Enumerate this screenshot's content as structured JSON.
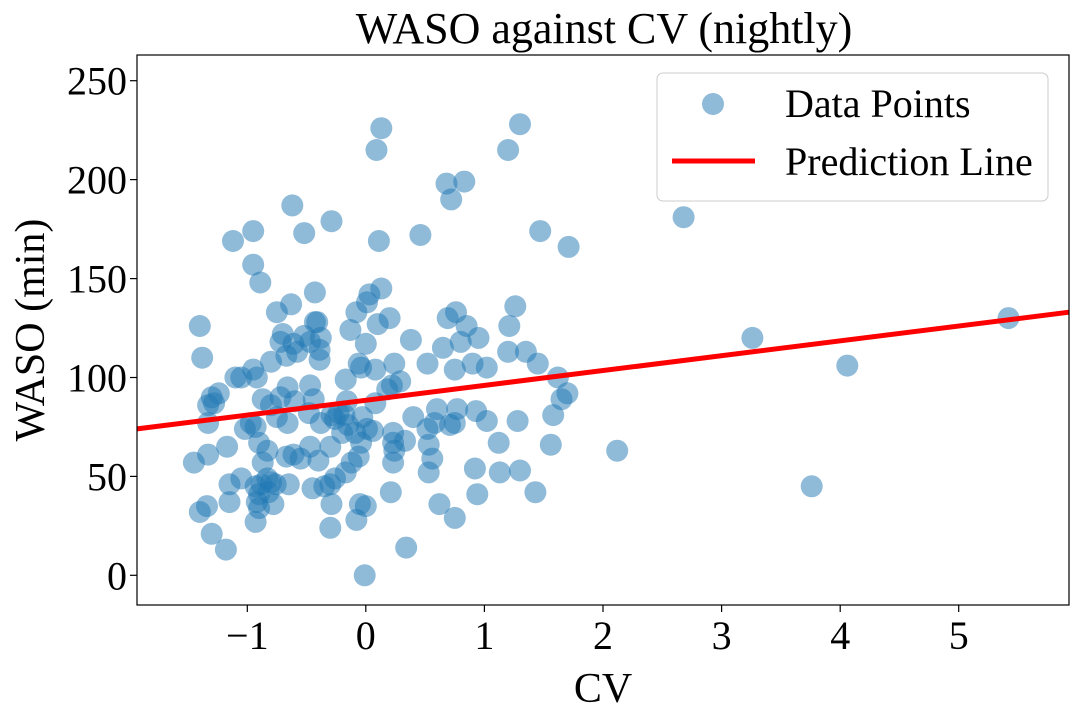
{
  "chart_data": {
    "type": "scatter",
    "title": "WASO against CV (nightly)",
    "xlabel": "CV",
    "ylabel": "WASO (min)",
    "xlim": [
      -1.93,
      5.93
    ],
    "ylim": [
      -15,
      263
    ],
    "xticks": [
      -1,
      0,
      1,
      2,
      3,
      4,
      5
    ],
    "yticks": [
      0,
      50,
      100,
      150,
      200,
      250
    ],
    "xtick_labels": [
      "−1",
      "0",
      "1",
      "2",
      "3",
      "4",
      "5"
    ],
    "ytick_labels": [
      "0",
      "50",
      "100",
      "150",
      "200",
      "250"
    ],
    "grid": false,
    "legend_position": "top-right",
    "series": [
      {
        "name": "Data Points",
        "kind": "scatter",
        "color": "#1f77b4",
        "alpha": 0.5,
        "points": [
          [
            0.13,
            226
          ],
          [
            0.09,
            215
          ],
          [
            1.3,
            228
          ],
          [
            1.2,
            215
          ],
          [
            0.68,
            198
          ],
          [
            0.83,
            199
          ],
          [
            0.72,
            190
          ],
          [
            -0.62,
            187
          ],
          [
            -0.29,
            179
          ],
          [
            -0.52,
            173
          ],
          [
            -0.95,
            174
          ],
          [
            -1.12,
            169
          ],
          [
            0.11,
            169
          ],
          [
            0.46,
            172
          ],
          [
            1.47,
            174
          ],
          [
            1.71,
            166
          ],
          [
            2.68,
            181
          ],
          [
            -0.95,
            157
          ],
          [
            -0.89,
            148
          ],
          [
            -0.43,
            143
          ],
          [
            0.03,
            142
          ],
          [
            0.13,
            145
          ],
          [
            0.01,
            138
          ],
          [
            -0.63,
            137
          ],
          [
            -0.75,
            133
          ],
          [
            -0.08,
            133
          ],
          [
            0.2,
            130
          ],
          [
            1.26,
            136
          ],
          [
            0.76,
            133
          ],
          [
            0.69,
            130
          ],
          [
            -0.43,
            128
          ],
          [
            -0.41,
            128
          ],
          [
            -1.4,
            126
          ],
          [
            -0.13,
            124
          ],
          [
            0.1,
            127
          ],
          [
            0.85,
            126
          ],
          [
            1.21,
            126
          ],
          [
            -0.7,
            122
          ],
          [
            -0.61,
            117
          ],
          [
            -0.58,
            113
          ],
          [
            -0.47,
            118
          ],
          [
            -0.39,
            114
          ],
          [
            -0.52,
            121
          ],
          [
            -0.38,
            120
          ],
          [
            0.0,
            117
          ],
          [
            -0.72,
            118
          ],
          [
            0.38,
            119
          ],
          [
            0.95,
            120
          ],
          [
            0.65,
            115
          ],
          [
            0.8,
            118
          ],
          [
            -1.38,
            110
          ],
          [
            -0.67,
            111
          ],
          [
            -0.39,
            109
          ],
          [
            -0.8,
            108
          ],
          [
            0.24,
            107
          ],
          [
            0.52,
            107
          ],
          [
            0.9,
            107
          ],
          [
            1.35,
            113
          ],
          [
            1.45,
            107
          ],
          [
            1.2,
            113
          ],
          [
            -0.06,
            107
          ],
          [
            0.08,
            104
          ],
          [
            -0.04,
            105
          ],
          [
            -0.95,
            104
          ],
          [
            -0.92,
            100
          ],
          [
            -1.1,
            100
          ],
          [
            -1.05,
            100
          ],
          [
            -0.17,
            99
          ],
          [
            0.29,
            98
          ],
          [
            0.22,
            96
          ],
          [
            0.75,
            104
          ],
          [
            1.02,
            105
          ],
          [
            0.18,
            94
          ],
          [
            -0.47,
            96
          ],
          [
            -0.66,
            95
          ],
          [
            1.62,
            100
          ],
          [
            1.7,
            92
          ],
          [
            3.26,
            120
          ],
          [
            4.06,
            106
          ],
          [
            5.42,
            130
          ],
          [
            -1.3,
            90
          ],
          [
            -1.28,
            87
          ],
          [
            -1.33,
            86
          ],
          [
            -1.24,
            92
          ],
          [
            -0.87,
            89
          ],
          [
            -0.72,
            90
          ],
          [
            -0.8,
            86
          ],
          [
            -0.6,
            88
          ],
          [
            -0.44,
            89
          ],
          [
            -0.48,
            82
          ],
          [
            -0.29,
            81
          ],
          [
            -0.16,
            88
          ],
          [
            0.08,
            87
          ],
          [
            -0.23,
            82
          ],
          [
            -0.03,
            80
          ],
          [
            0.4,
            80
          ],
          [
            0.6,
            84
          ],
          [
            0.77,
            84
          ],
          [
            0.93,
            83
          ],
          [
            1.58,
            81
          ],
          [
            1.65,
            89
          ],
          [
            -1.33,
            77
          ],
          [
            -0.97,
            77
          ],
          [
            -0.93,
            75
          ],
          [
            -0.75,
            80
          ],
          [
            -0.66,
            77
          ],
          [
            -0.38,
            77
          ],
          [
            -0.26,
            79
          ],
          [
            -0.18,
            81
          ],
          [
            -0.15,
            76
          ],
          [
            -0.2,
            72
          ],
          [
            -0.09,
            72
          ],
          [
            0.01,
            74
          ],
          [
            0.06,
            73
          ],
          [
            0.23,
            72
          ],
          [
            0.52,
            74
          ],
          [
            0.58,
            77
          ],
          [
            0.71,
            76
          ],
          [
            0.75,
            77
          ],
          [
            1.02,
            78
          ],
          [
            1.28,
            78
          ],
          [
            -1.17,
            65
          ],
          [
            -1.02,
            74
          ],
          [
            -0.9,
            67
          ],
          [
            -0.83,
            63
          ],
          [
            -0.61,
            61
          ],
          [
            -0.67,
            60
          ],
          [
            -0.55,
            59
          ],
          [
            -0.47,
            65
          ],
          [
            -0.4,
            58
          ],
          [
            -0.3,
            65
          ],
          [
            -0.04,
            67
          ],
          [
            0.23,
            67
          ],
          [
            0.33,
            68
          ],
          [
            0.24,
            63
          ],
          [
            0.53,
            66
          ],
          [
            0.56,
            59
          ],
          [
            1.12,
            67
          ],
          [
            1.56,
            66
          ],
          [
            2.12,
            63
          ],
          [
            -1.45,
            57
          ],
          [
            -1.33,
            61
          ],
          [
            -1.05,
            49
          ],
          [
            -1.15,
            46
          ],
          [
            -0.93,
            45
          ],
          [
            -0.88,
            46
          ],
          [
            -0.83,
            49
          ],
          [
            -0.87,
            57
          ],
          [
            -0.9,
            41
          ],
          [
            -0.82,
            42
          ],
          [
            -0.76,
            46
          ],
          [
            -0.8,
            47
          ],
          [
            -0.65,
            46
          ],
          [
            -0.45,
            44
          ],
          [
            -0.35,
            45
          ],
          [
            -0.3,
            46
          ],
          [
            -0.26,
            49
          ],
          [
            -0.17,
            52
          ],
          [
            -0.12,
            57
          ],
          [
            -0.06,
            60
          ],
          [
            0.23,
            57
          ],
          [
            0.53,
            52
          ],
          [
            0.92,
            54
          ],
          [
            1.13,
            52
          ],
          [
            1.3,
            53
          ],
          [
            -1.34,
            35
          ],
          [
            -1.4,
            32
          ],
          [
            -1.15,
            37
          ],
          [
            -0.92,
            37
          ],
          [
            -0.9,
            34
          ],
          [
            -0.78,
            36
          ],
          [
            -0.93,
            27
          ],
          [
            -0.29,
            36
          ],
          [
            -0.3,
            24
          ],
          [
            -0.08,
            28
          ],
          [
            -0.05,
            36
          ],
          [
            0.0,
            35
          ],
          [
            0.21,
            42
          ],
          [
            0.62,
            36
          ],
          [
            0.75,
            29
          ],
          [
            0.94,
            41
          ],
          [
            1.43,
            42
          ],
          [
            3.76,
            45
          ],
          [
            -1.3,
            21
          ],
          [
            -1.18,
            13
          ],
          [
            0.34,
            14
          ],
          [
            -0.01,
            0
          ]
        ]
      },
      {
        "name": "Prediction Line",
        "kind": "line",
        "color": "#ff0000",
        "points": [
          [
            -1.93,
            74
          ],
          [
            5.93,
            133
          ]
        ]
      }
    ]
  }
}
